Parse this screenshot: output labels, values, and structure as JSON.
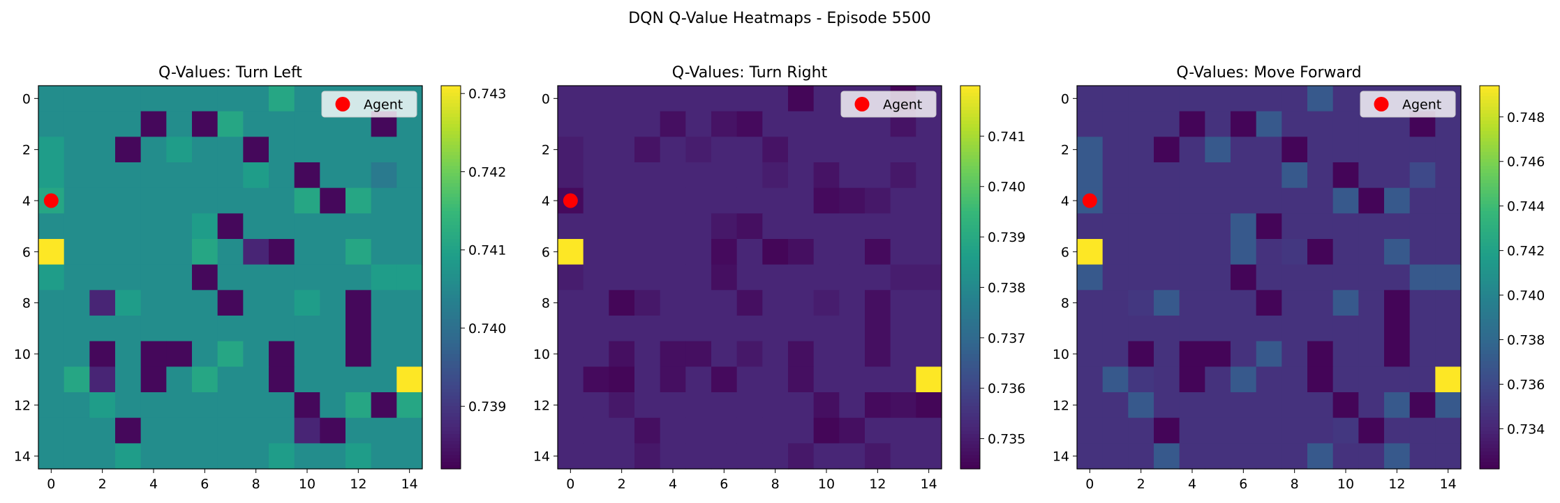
{
  "suptitle": "DQN Q-Value Heatmaps - Episode 5500",
  "chart_data": [
    {
      "type": "heatmap",
      "title": "Q-Values: Turn Left",
      "x_ticks": [
        "0",
        "2",
        "4",
        "6",
        "8",
        "10",
        "12",
        "14"
      ],
      "y_ticks": [
        "0",
        "2",
        "4",
        "6",
        "8",
        "10",
        "12",
        "14"
      ],
      "colormap": "viridis",
      "vmin": 0.7382,
      "vmax": 0.7431,
      "colorbar_ticks": [
        "0.739",
        "0.740",
        "0.741",
        "0.742",
        "0.743"
      ],
      "colorbar_tick_values": [
        0.739,
        0.74,
        0.741,
        0.742,
        0.743
      ],
      "legend": {
        "label": "Agent",
        "placement": "upper right"
      },
      "agent": {
        "x": 0,
        "y": 4
      },
      "values": [
        [
          0.7406,
          0.7406,
          0.7406,
          0.7406,
          0.7406,
          0.7406,
          0.7406,
          0.7406,
          0.7406,
          0.7411,
          0.7406,
          0.7406,
          0.7406,
          0.7406,
          0.7406
        ],
        [
          0.7406,
          0.7406,
          0.7406,
          0.7406,
          0.7383,
          0.7406,
          0.7383,
          0.7411,
          0.7406,
          0.7406,
          0.7406,
          0.7406,
          0.7406,
          0.7383,
          0.7406
        ],
        [
          0.7409,
          0.7406,
          0.7406,
          0.7383,
          0.7406,
          0.7409,
          0.7406,
          0.7406,
          0.7383,
          0.7406,
          0.7406,
          0.7406,
          0.7406,
          0.7406,
          0.7406
        ],
        [
          0.7409,
          0.7406,
          0.7406,
          0.7406,
          0.7406,
          0.7406,
          0.7406,
          0.7406,
          0.7409,
          0.7406,
          0.7383,
          0.7406,
          0.7406,
          0.7402,
          0.7406
        ],
        [
          0.7411,
          0.7406,
          0.7406,
          0.7406,
          0.7406,
          0.7406,
          0.7406,
          0.7406,
          0.7406,
          0.7406,
          0.7411,
          0.7383,
          0.7411,
          0.7406,
          0.7406
        ],
        [
          0.7406,
          0.7406,
          0.7406,
          0.7406,
          0.7406,
          0.7406,
          0.7409,
          0.7383,
          0.7406,
          0.7406,
          0.7406,
          0.7406,
          0.7406,
          0.7406,
          0.7406
        ],
        [
          0.7431,
          0.7406,
          0.7406,
          0.7406,
          0.7406,
          0.7406,
          0.7411,
          0.7406,
          0.7387,
          0.7383,
          0.7406,
          0.7406,
          0.7411,
          0.7406,
          0.7406
        ],
        [
          0.7409,
          0.7406,
          0.7406,
          0.7406,
          0.7406,
          0.7406,
          0.7383,
          0.7406,
          0.7406,
          0.7406,
          0.7406,
          0.7406,
          0.7406,
          0.7409,
          0.7409
        ],
        [
          0.7406,
          0.7406,
          0.7387,
          0.7409,
          0.7406,
          0.7406,
          0.7406,
          0.7383,
          0.7406,
          0.7406,
          0.7409,
          0.7406,
          0.7383,
          0.7406,
          0.7406
        ],
        [
          0.7406,
          0.7406,
          0.7406,
          0.7406,
          0.7406,
          0.7406,
          0.7406,
          0.7406,
          0.7406,
          0.7406,
          0.7406,
          0.7406,
          0.7383,
          0.7406,
          0.7406
        ],
        [
          0.7406,
          0.7406,
          0.7383,
          0.7406,
          0.7383,
          0.7383,
          0.7406,
          0.7411,
          0.7406,
          0.7383,
          0.7406,
          0.7406,
          0.7383,
          0.7406,
          0.7406
        ],
        [
          0.7406,
          0.7411,
          0.7387,
          0.7406,
          0.7383,
          0.7406,
          0.7411,
          0.7406,
          0.7406,
          0.7383,
          0.7406,
          0.7406,
          0.7406,
          0.7406,
          0.7431
        ],
        [
          0.7406,
          0.7406,
          0.7409,
          0.7406,
          0.7406,
          0.7406,
          0.7406,
          0.7406,
          0.7406,
          0.7406,
          0.7383,
          0.7406,
          0.7411,
          0.7383,
          0.7411
        ],
        [
          0.7406,
          0.7406,
          0.7406,
          0.7383,
          0.7406,
          0.7406,
          0.7406,
          0.7406,
          0.7406,
          0.7406,
          0.7387,
          0.7383,
          0.7406,
          0.7406,
          0.7406
        ],
        [
          0.7406,
          0.7406,
          0.7406,
          0.7409,
          0.7406,
          0.7406,
          0.7406,
          0.7406,
          0.7406,
          0.7409,
          0.7406,
          0.7406,
          0.7409,
          0.7406,
          0.7406
        ]
      ]
    },
    {
      "type": "heatmap",
      "title": "Q-Values: Turn Right",
      "x_ticks": [
        "0",
        "2",
        "4",
        "6",
        "8",
        "10",
        "12",
        "14"
      ],
      "y_ticks": [
        "0",
        "2",
        "4",
        "6",
        "8",
        "10",
        "12",
        "14"
      ],
      "colormap": "viridis",
      "vmin": 0.7344,
      "vmax": 0.742,
      "colorbar_ticks": [
        "0.735",
        "0.736",
        "0.737",
        "0.738",
        "0.739",
        "0.740",
        "0.741"
      ],
      "colorbar_tick_values": [
        0.735,
        0.736,
        0.737,
        0.738,
        0.739,
        0.74,
        0.741
      ],
      "legend": {
        "label": "Agent",
        "placement": "upper right"
      },
      "agent": {
        "x": 0,
        "y": 4
      },
      "values": [
        [
          0.7352,
          0.7352,
          0.7352,
          0.7352,
          0.7352,
          0.7352,
          0.7352,
          0.7352,
          0.7352,
          0.7345,
          0.7352,
          0.7352,
          0.7352,
          0.7345,
          0.7352
        ],
        [
          0.7352,
          0.7352,
          0.7352,
          0.7352,
          0.7347,
          0.7352,
          0.7348,
          0.7346,
          0.7352,
          0.7352,
          0.7352,
          0.7352,
          0.7352,
          0.7348,
          0.7352
        ],
        [
          0.735,
          0.7352,
          0.7352,
          0.7348,
          0.7352,
          0.735,
          0.7352,
          0.7352,
          0.7348,
          0.7352,
          0.7352,
          0.7352,
          0.7352,
          0.7352,
          0.7352
        ],
        [
          0.735,
          0.7352,
          0.7352,
          0.7352,
          0.7352,
          0.7352,
          0.7352,
          0.7352,
          0.735,
          0.7352,
          0.7348,
          0.7352,
          0.7352,
          0.7349,
          0.7352
        ],
        [
          0.7346,
          0.7352,
          0.7352,
          0.7352,
          0.7352,
          0.7352,
          0.7352,
          0.7352,
          0.7352,
          0.7352,
          0.7346,
          0.7347,
          0.7349,
          0.7352,
          0.7352
        ],
        [
          0.7352,
          0.7352,
          0.7352,
          0.7352,
          0.7352,
          0.7352,
          0.7349,
          0.7347,
          0.7352,
          0.7352,
          0.7352,
          0.7352,
          0.7352,
          0.7352,
          0.7352
        ],
        [
          0.742,
          0.7352,
          0.7352,
          0.7352,
          0.7352,
          0.7352,
          0.7346,
          0.7352,
          0.7345,
          0.7347,
          0.7352,
          0.7352,
          0.7346,
          0.7352,
          0.7352
        ],
        [
          0.735,
          0.7352,
          0.7352,
          0.7352,
          0.7352,
          0.7352,
          0.7347,
          0.7352,
          0.7352,
          0.7352,
          0.7352,
          0.7352,
          0.7352,
          0.735,
          0.735
        ],
        [
          0.7352,
          0.7352,
          0.7345,
          0.7349,
          0.7352,
          0.7352,
          0.7352,
          0.7347,
          0.7352,
          0.7352,
          0.735,
          0.7352,
          0.7347,
          0.7352,
          0.7352
        ],
        [
          0.7352,
          0.7352,
          0.7352,
          0.7352,
          0.7352,
          0.7352,
          0.7352,
          0.7352,
          0.7352,
          0.7352,
          0.7352,
          0.7352,
          0.7347,
          0.7352,
          0.7352
        ],
        [
          0.7352,
          0.7352,
          0.7347,
          0.7352,
          0.7347,
          0.7347,
          0.7352,
          0.7349,
          0.7352,
          0.7347,
          0.7352,
          0.7352,
          0.7347,
          0.7352,
          0.7352
        ],
        [
          0.7352,
          0.7346,
          0.7345,
          0.7352,
          0.7347,
          0.7352,
          0.7346,
          0.7352,
          0.7352,
          0.7347,
          0.7352,
          0.7352,
          0.7352,
          0.7352,
          0.742
        ],
        [
          0.7352,
          0.7352,
          0.7349,
          0.7352,
          0.7352,
          0.7352,
          0.7352,
          0.7352,
          0.7352,
          0.7352,
          0.7347,
          0.7352,
          0.7346,
          0.7347,
          0.7345
        ],
        [
          0.7352,
          0.7352,
          0.7352,
          0.7347,
          0.7352,
          0.7352,
          0.7352,
          0.7352,
          0.7352,
          0.7352,
          0.7345,
          0.7347,
          0.7352,
          0.7352,
          0.7352
        ],
        [
          0.7352,
          0.7352,
          0.7352,
          0.7349,
          0.7352,
          0.7352,
          0.7352,
          0.7352,
          0.7352,
          0.7349,
          0.7352,
          0.7352,
          0.7349,
          0.7352,
          0.7352
        ]
      ]
    },
    {
      "type": "heatmap",
      "title": "Q-Values: Move Forward",
      "x_ticks": [
        "0",
        "2",
        "4",
        "6",
        "8",
        "10",
        "12",
        "14"
      ],
      "y_ticks": [
        "0",
        "2",
        "4",
        "6",
        "8",
        "10",
        "12",
        "14"
      ],
      "colormap": "viridis",
      "vmin": 0.7322,
      "vmax": 0.7494,
      "colorbar_ticks": [
        "0.734",
        "0.736",
        "0.738",
        "0.740",
        "0.742",
        "0.744",
        "0.746",
        "0.748"
      ],
      "colorbar_tick_values": [
        0.734,
        0.736,
        0.738,
        0.74,
        0.742,
        0.744,
        0.746,
        0.748
      ],
      "legend": {
        "label": "Agent",
        "placement": "upper right"
      },
      "agent": {
        "x": 0,
        "y": 4
      },
      "values": [
        [
          0.7347,
          0.7347,
          0.7347,
          0.7347,
          0.7347,
          0.7347,
          0.7347,
          0.7347,
          0.7347,
          0.737,
          0.7347,
          0.7347,
          0.7347,
          0.7347,
          0.7347
        ],
        [
          0.7347,
          0.7347,
          0.7347,
          0.7347,
          0.7324,
          0.7347,
          0.7324,
          0.737,
          0.7347,
          0.7347,
          0.7347,
          0.7347,
          0.7347,
          0.7324,
          0.7347
        ],
        [
          0.737,
          0.7347,
          0.7347,
          0.7324,
          0.7347,
          0.737,
          0.7347,
          0.7347,
          0.7324,
          0.7347,
          0.7347,
          0.7347,
          0.7347,
          0.7347,
          0.7347
        ],
        [
          0.737,
          0.7347,
          0.7347,
          0.7347,
          0.7347,
          0.7347,
          0.7347,
          0.7347,
          0.737,
          0.7347,
          0.7324,
          0.7347,
          0.7347,
          0.736,
          0.7347
        ],
        [
          0.737,
          0.7347,
          0.7347,
          0.7347,
          0.7347,
          0.7347,
          0.7347,
          0.7347,
          0.7347,
          0.7347,
          0.737,
          0.7324,
          0.737,
          0.7347,
          0.7347
        ],
        [
          0.7347,
          0.7347,
          0.7347,
          0.7347,
          0.7347,
          0.7347,
          0.737,
          0.7324,
          0.7347,
          0.7347,
          0.7347,
          0.7347,
          0.7347,
          0.7347,
          0.7347
        ],
        [
          0.7494,
          0.7347,
          0.7347,
          0.7347,
          0.7347,
          0.7347,
          0.737,
          0.7347,
          0.735,
          0.7324,
          0.7347,
          0.7347,
          0.737,
          0.7347,
          0.7347
        ],
        [
          0.737,
          0.7347,
          0.7347,
          0.7347,
          0.7347,
          0.7347,
          0.7324,
          0.7347,
          0.7347,
          0.7347,
          0.7347,
          0.7347,
          0.7347,
          0.737,
          0.737
        ],
        [
          0.7347,
          0.7347,
          0.735,
          0.737,
          0.7347,
          0.7347,
          0.7347,
          0.7324,
          0.7347,
          0.7347,
          0.737,
          0.7347,
          0.7324,
          0.7347,
          0.7347
        ],
        [
          0.7347,
          0.7347,
          0.7347,
          0.7347,
          0.7347,
          0.7347,
          0.7347,
          0.7347,
          0.7347,
          0.7347,
          0.7347,
          0.7347,
          0.7324,
          0.7347,
          0.7347
        ],
        [
          0.7347,
          0.7347,
          0.7324,
          0.7347,
          0.7324,
          0.7324,
          0.7347,
          0.737,
          0.7347,
          0.7324,
          0.7347,
          0.7347,
          0.7324,
          0.7347,
          0.7347
        ],
        [
          0.7347,
          0.737,
          0.735,
          0.7347,
          0.7324,
          0.7347,
          0.737,
          0.7347,
          0.7347,
          0.7324,
          0.7347,
          0.7347,
          0.7347,
          0.7347,
          0.7494
        ],
        [
          0.7347,
          0.7347,
          0.737,
          0.7347,
          0.7347,
          0.7347,
          0.7347,
          0.7347,
          0.7347,
          0.7347,
          0.7324,
          0.7347,
          0.737,
          0.7324,
          0.737
        ],
        [
          0.7347,
          0.7347,
          0.7347,
          0.7324,
          0.7347,
          0.7347,
          0.7347,
          0.7347,
          0.7347,
          0.7347,
          0.735,
          0.7324,
          0.7347,
          0.7347,
          0.7347
        ],
        [
          0.7347,
          0.7347,
          0.7347,
          0.737,
          0.7347,
          0.7347,
          0.7347,
          0.7347,
          0.7347,
          0.737,
          0.7347,
          0.7347,
          0.737,
          0.7347,
          0.7347
        ]
      ]
    }
  ]
}
